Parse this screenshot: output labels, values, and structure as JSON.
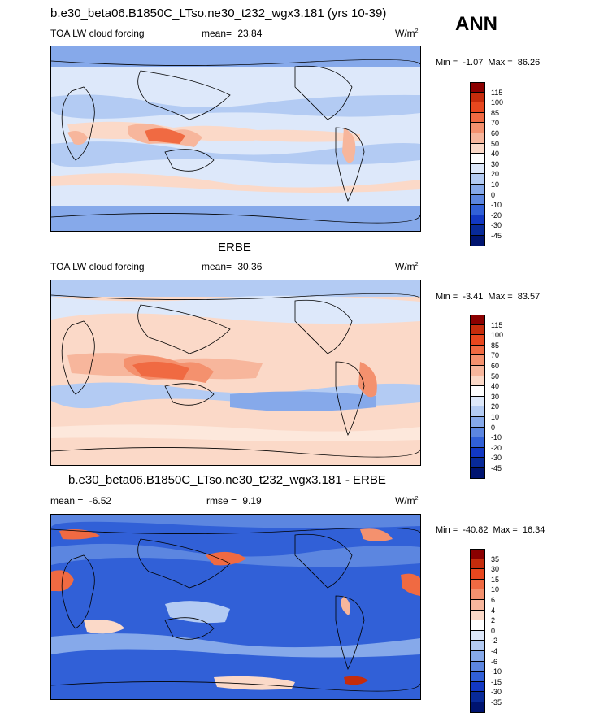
{
  "season": "ANN",
  "panels": [
    {
      "title": "b.e30_beta06.B1850C_LTso.ne30_t232_wgx3.181 (yrs 10-39)",
      "left_label": "TOA LW cloud forcing",
      "mean_label": "mean=",
      "mean_value": "23.84",
      "units": "W/m",
      "units_sup": "2",
      "min_label": "Min =",
      "min_value": "-1.07",
      "max_label": "Max =",
      "max_value": "86.26",
      "colorbar_labels": [
        "115",
        "100",
        "85",
        "70",
        "60",
        "50",
        "40",
        "30",
        "20",
        "10",
        "0",
        "-10",
        "-20",
        "-30",
        "-45"
      ],
      "colorbar_colors": [
        "#8b0000",
        "#c62c0c",
        "#e8471e",
        "#f06a42",
        "#f4916e",
        "#f7b69c",
        "#fbd9c8",
        "#ffffff",
        "#dde8fa",
        "#b3cbf3",
        "#86a9ea",
        "#5c86e0",
        "#3160d7",
        "#1238c3",
        "#082a99",
        "#001470"
      ]
    },
    {
      "title": "ERBE",
      "left_label": "TOA LW cloud forcing",
      "mean_label": "mean=",
      "mean_value": "30.36",
      "units": "W/m",
      "units_sup": "2",
      "min_label": "Min =",
      "min_value": "-3.41",
      "max_label": "Max =",
      "max_value": "83.57",
      "colorbar_labels": [
        "115",
        "100",
        "85",
        "70",
        "60",
        "50",
        "40",
        "30",
        "20",
        "10",
        "0",
        "-10",
        "-20",
        "-30",
        "-45"
      ],
      "colorbar_colors": [
        "#8b0000",
        "#c62c0c",
        "#e8471e",
        "#f06a42",
        "#f4916e",
        "#f7b69c",
        "#fbd9c8",
        "#ffffff",
        "#dde8fa",
        "#b3cbf3",
        "#86a9ea",
        "#5c86e0",
        "#3160d7",
        "#1238c3",
        "#082a99",
        "#001470"
      ]
    },
    {
      "title": "b.e30_beta06.B1850C_LTso.ne30_t232_wgx3.181 - ERBE",
      "left_label": "mean =",
      "left_value": "-6.52",
      "mean_label": "rmse =",
      "mean_value": "9.19",
      "units": "W/m",
      "units_sup": "2",
      "min_label": "Min =",
      "min_value": "-40.82",
      "max_label": "Max =",
      "max_value": "16.34",
      "colorbar_labels": [
        "35",
        "30",
        "15",
        "10",
        "6",
        "4",
        "2",
        "0",
        "-2",
        "-4",
        "-6",
        "-10",
        "-15",
        "-30",
        "-35"
      ],
      "colorbar_colors": [
        "#8b0000",
        "#c62c0c",
        "#e8471e",
        "#f06a42",
        "#f4916e",
        "#f7b69c",
        "#fbd9c8",
        "#ffffff",
        "#dde8fa",
        "#b3cbf3",
        "#86a9ea",
        "#5c86e0",
        "#3160d7",
        "#1238c3",
        "#082a99",
        "#001470"
      ]
    }
  ]
}
